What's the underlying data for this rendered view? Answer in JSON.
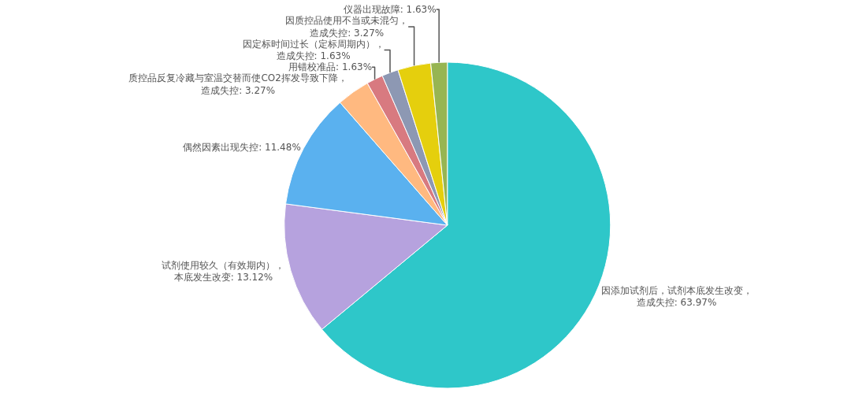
{
  "chart_data": {
    "type": "pie",
    "categories": [
      "因添加试剂后，试剂本底发生改变，造成失控",
      "试剂使用较久（有效期内），本底发生改变",
      "偶然因素出现失控",
      "质控品反复冷藏与室温交替而使CO2挥发导致下降，造成失控",
      "用错校准品",
      "因定标时间过长（定标周期内），造成失控",
      "因质控品使用不当或未混匀，造成失控",
      "仪器出现故障"
    ],
    "values": [
      63.97,
      13.12,
      11.48,
      3.27,
      1.63,
      1.63,
      3.27,
      1.63
    ],
    "value_labels": [
      "63.97%",
      "13.12%",
      "11.48%",
      "3.27%",
      "1.63%",
      "1.63%",
      "3.27%",
      "1.63%"
    ],
    "colors": [
      "#2ec7c9",
      "#b6a2de",
      "#5ab1ef",
      "#ffb980",
      "#d87a80",
      "#8d98b3",
      "#e5cf0d",
      "#97b552"
    ],
    "legend": false
  }
}
